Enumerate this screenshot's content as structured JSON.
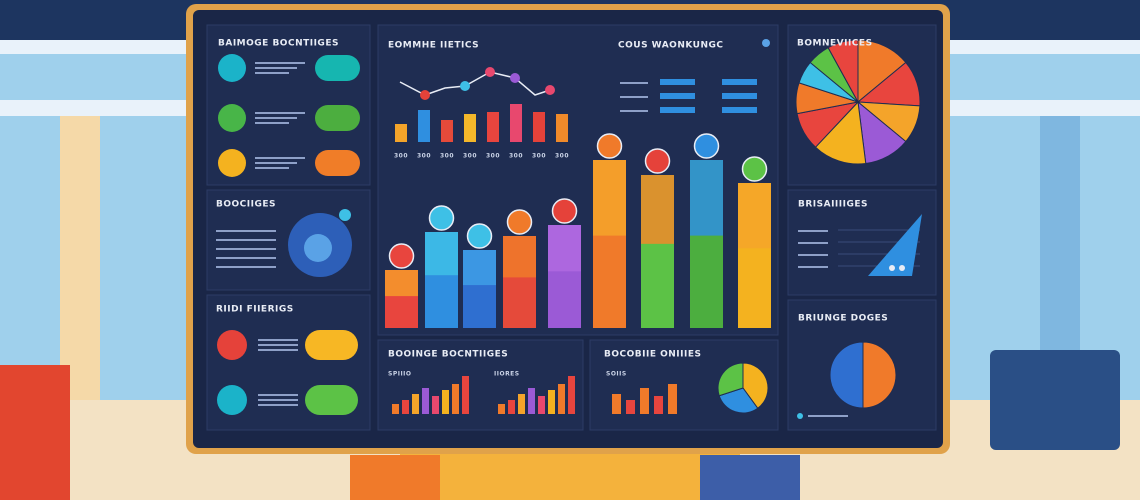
{
  "screen": {
    "left_headings": [
      "BAIMOGE BOCNTIIGES",
      "BOOCIIGES",
      "RIIDI FIIERIGS"
    ],
    "middle_headings": [
      "EOMMHE IIETICS",
      "COUS WAONKUNGC"
    ],
    "bar_labels": [
      "300",
      "300",
      "300",
      "300",
      "300",
      "300",
      "300",
      "300"
    ],
    "bottom_headings": [
      "BOOINGE BOCNTIIGES",
      "BOCOBIIE ONIIIES"
    ],
    "bottom_sublabels": [
      "SPIIIO",
      "IIORES",
      "SOIIS"
    ],
    "right_headings": [
      "BOMNEVIICES",
      "BRISAIIIIGES",
      "BRIUNGE DOGES"
    ]
  }
}
